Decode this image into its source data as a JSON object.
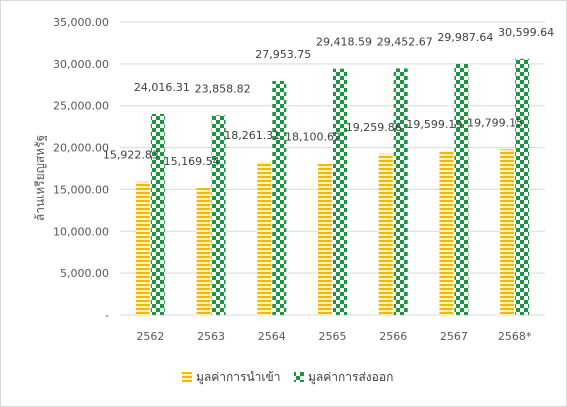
{
  "chart_data": {
    "type": "bar",
    "title": "",
    "xlabel": "",
    "ylabel": "ล้านเหรียญสหรัฐ",
    "ylim": [
      0,
      35000
    ],
    "y_ticks": [
      "-",
      "5,000.00",
      "10,000.00",
      "15,000.00",
      "20,000.00",
      "25,000.00",
      "30,000.00",
      "35,000.00"
    ],
    "y_tick_values": [
      0,
      5000,
      10000,
      15000,
      20000,
      25000,
      30000,
      35000
    ],
    "grid": true,
    "legend_position": "bottom",
    "categories": [
      "2562",
      "2563",
      "2564",
      "2565",
      "2566",
      "2567",
      "2568*"
    ],
    "series": [
      {
        "name": "มูลค่าการนำเข้า",
        "color": "#f5b800",
        "pattern": "horizontal-stripes",
        "values": [
          15922.83,
          15169.54,
          18261.31,
          18100.62,
          19259.86,
          19599.19,
          19799.15
        ],
        "labels": [
          "15,922.83",
          "15,169.54",
          "18,261.31",
          "18,100.62",
          "19,259.86",
          "19,599.19",
          "19,799.15"
        ]
      },
      {
        "name": "มูลค่าการส่งออก",
        "color": "#1a9641",
        "pattern": "checkerboard",
        "values": [
          24016.31,
          23858.82,
          27953.75,
          29418.59,
          29452.67,
          29987.64,
          30599.64
        ],
        "labels": [
          "24,016.31",
          "23,858.82",
          "27,953.75",
          "29,418.59",
          "29,452.67",
          "29,987.64",
          "30,599.64"
        ]
      }
    ]
  }
}
